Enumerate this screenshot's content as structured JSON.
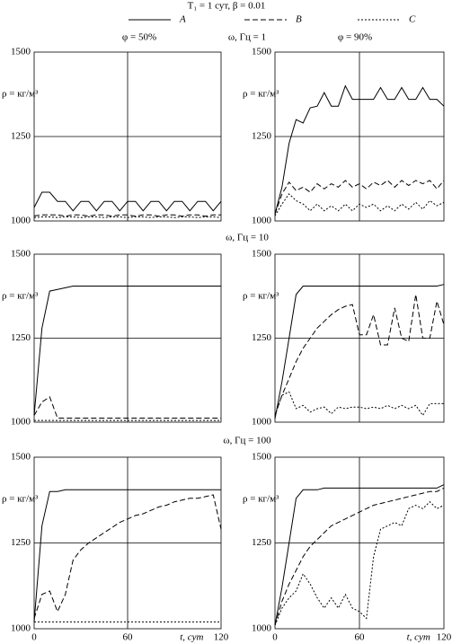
{
  "title": "T₁ = 1 сут,  β = 0.01",
  "column_titles": [
    "φ = 50%",
    "φ = 90%"
  ],
  "row_titles": [
    "ω, Гц = 1",
    "ω, Гц = 10",
    "ω, Гц = 100"
  ],
  "chart_data": [
    {
      "type": "line",
      "ylabel": "ρ = кг/м³",
      "xlim": [
        0,
        120
      ],
      "ylim": [
        1000,
        1500
      ],
      "yticks": [
        1000,
        1250,
        1500
      ],
      "xticks": [
        60
      ],
      "xtick_labels": false,
      "grid": true,
      "x": [
        0,
        5,
        10,
        15,
        20,
        25,
        30,
        35,
        40,
        45,
        50,
        55,
        60,
        65,
        70,
        75,
        80,
        85,
        90,
        95,
        100,
        105,
        110,
        115,
        120
      ],
      "series": [
        {
          "name": "A",
          "color": "#000000",
          "dash": "solid",
          "values": [
            1040,
            1085,
            1085,
            1058,
            1058,
            1030,
            1058,
            1058,
            1030,
            1058,
            1058,
            1030,
            1058,
            1058,
            1030,
            1058,
            1058,
            1030,
            1058,
            1058,
            1030,
            1058,
            1058,
            1030,
            1058
          ]
        },
        {
          "name": "B",
          "color": "#000000",
          "dash": "dashed",
          "values": [
            1015,
            1018,
            1018,
            1018,
            1014,
            1018,
            1018,
            1014,
            1018,
            1018,
            1014,
            1018,
            1018,
            1014,
            1018,
            1018,
            1014,
            1018,
            1018,
            1014,
            1018,
            1018,
            1014,
            1018,
            1018
          ]
        },
        {
          "name": "C",
          "color": "#000000",
          "dash": "dotted",
          "values": [
            1010,
            1012,
            1012,
            1010,
            1012,
            1012,
            1010,
            1012,
            1012,
            1010,
            1012,
            1012,
            1010,
            1012,
            1012,
            1010,
            1012,
            1012,
            1010,
            1012,
            1012,
            1010,
            1012,
            1012,
            1010
          ]
        }
      ]
    },
    {
      "type": "line",
      "ylabel": "ρ = кг/м³",
      "xlim": [
        0,
        120
      ],
      "ylim": [
        1000,
        1500
      ],
      "yticks": [
        1000,
        1250,
        1500
      ],
      "xticks": [
        60
      ],
      "xtick_labels": false,
      "grid": true,
      "x": [
        0,
        5,
        10,
        15,
        20,
        25,
        30,
        35,
        40,
        45,
        50,
        55,
        60,
        65,
        70,
        75,
        80,
        85,
        90,
        95,
        100,
        105,
        110,
        115,
        120
      ],
      "series": [
        {
          "name": "A",
          "color": "#000000",
          "dash": "solid",
          "values": [
            1020,
            1100,
            1230,
            1300,
            1290,
            1335,
            1340,
            1380,
            1340,
            1340,
            1400,
            1360,
            1360,
            1360,
            1360,
            1395,
            1360,
            1360,
            1395,
            1360,
            1360,
            1395,
            1360,
            1360,
            1340
          ]
        },
        {
          "name": "B",
          "color": "#000000",
          "dash": "dashed",
          "values": [
            1020,
            1080,
            1115,
            1090,
            1100,
            1085,
            1110,
            1095,
            1110,
            1100,
            1120,
            1100,
            1110,
            1095,
            1115,
            1105,
            1120,
            1100,
            1120,
            1105,
            1120,
            1110,
            1120,
            1095,
            1120
          ]
        },
        {
          "name": "C",
          "color": "#000000",
          "dash": "dotted",
          "values": [
            1015,
            1050,
            1080,
            1060,
            1050,
            1030,
            1050,
            1030,
            1045,
            1030,
            1050,
            1030,
            1050,
            1040,
            1050,
            1030,
            1045,
            1030,
            1050,
            1035,
            1055,
            1035,
            1060,
            1045,
            1055
          ]
        }
      ]
    },
    {
      "type": "line",
      "ylabel": "ρ = кг/м³",
      "xlim": [
        0,
        120
      ],
      "ylim": [
        1000,
        1500
      ],
      "yticks": [
        1000,
        1250,
        1500
      ],
      "xticks": [
        60
      ],
      "xtick_labels": false,
      "grid": true,
      "x": [
        0,
        5,
        10,
        15,
        20,
        25,
        30,
        35,
        40,
        45,
        50,
        55,
        60,
        65,
        70,
        75,
        80,
        85,
        90,
        95,
        100,
        105,
        110,
        115,
        120
      ],
      "series": [
        {
          "name": "A",
          "color": "#000000",
          "dash": "solid",
          "values": [
            1020,
            1280,
            1390,
            1395,
            1400,
            1405,
            1405,
            1405,
            1405,
            1405,
            1405,
            1405,
            1405,
            1405,
            1405,
            1405,
            1405,
            1405,
            1405,
            1405,
            1405,
            1405,
            1405,
            1405,
            1405
          ]
        },
        {
          "name": "B",
          "color": "#000000",
          "dash": "dashed",
          "values": [
            1020,
            1060,
            1075,
            1012,
            1012,
            1012,
            1012,
            1012,
            1012,
            1012,
            1012,
            1012,
            1012,
            1012,
            1012,
            1012,
            1012,
            1012,
            1012,
            1012,
            1012,
            1012,
            1012,
            1012,
            1012
          ]
        },
        {
          "name": "C",
          "color": "#000000",
          "dash": "dotted",
          "values": [
            1005,
            1005,
            1005,
            1005,
            1005,
            1005,
            1005,
            1005,
            1005,
            1005,
            1005,
            1005,
            1005,
            1005,
            1005,
            1005,
            1005,
            1005,
            1005,
            1005,
            1005,
            1005,
            1005,
            1005,
            1005
          ]
        }
      ]
    },
    {
      "type": "line",
      "ylabel": "ρ = кг/м³",
      "xlim": [
        0,
        120
      ],
      "ylim": [
        1000,
        1500
      ],
      "yticks": [
        1000,
        1250,
        1500
      ],
      "xticks": [
        60
      ],
      "xtick_labels": false,
      "grid": true,
      "x": [
        0,
        5,
        10,
        15,
        20,
        25,
        30,
        35,
        40,
        45,
        50,
        55,
        60,
        65,
        70,
        75,
        80,
        85,
        90,
        95,
        100,
        105,
        110,
        115,
        120
      ],
      "series": [
        {
          "name": "A",
          "color": "#000000",
          "dash": "solid",
          "values": [
            1010,
            1120,
            1250,
            1380,
            1405,
            1405,
            1405,
            1405,
            1405,
            1405,
            1405,
            1405,
            1405,
            1405,
            1405,
            1405,
            1405,
            1405,
            1405,
            1405,
            1405,
            1405,
            1405,
            1405,
            1410
          ]
        },
        {
          "name": "B",
          "color": "#000000",
          "dash": "dashed",
          "values": [
            1020,
            1080,
            1130,
            1180,
            1220,
            1250,
            1280,
            1300,
            1320,
            1335,
            1345,
            1350,
            1260,
            1260,
            1320,
            1230,
            1230,
            1340,
            1250,
            1240,
            1380,
            1250,
            1250,
            1360,
            1290
          ]
        },
        {
          "name": "C",
          "color": "#000000",
          "dash": "dotted",
          "values": [
            1020,
            1080,
            1090,
            1040,
            1050,
            1030,
            1040,
            1045,
            1025,
            1045,
            1040,
            1045,
            1045,
            1040,
            1045,
            1040,
            1050,
            1040,
            1050,
            1040,
            1050,
            1020,
            1055,
            1055,
            1055
          ]
        }
      ]
    },
    {
      "type": "line",
      "ylabel": "ρ = кг/м³",
      "xlabel": "t, сут",
      "xlim": [
        0,
        120
      ],
      "ylim": [
        1000,
        1500
      ],
      "yticks": [
        1000,
        1250,
        1500
      ],
      "xticks": [
        0,
        60,
        120
      ],
      "xtick_labels": true,
      "grid": true,
      "x": [
        0,
        5,
        10,
        15,
        20,
        25,
        30,
        35,
        40,
        45,
        50,
        55,
        60,
        65,
        70,
        75,
        80,
        85,
        90,
        95,
        100,
        105,
        110,
        115,
        120
      ],
      "series": [
        {
          "name": "A",
          "color": "#000000",
          "dash": "solid",
          "values": [
            1020,
            1300,
            1400,
            1400,
            1405,
            1405,
            1405,
            1405,
            1405,
            1405,
            1405,
            1405,
            1405,
            1405,
            1405,
            1405,
            1405,
            1405,
            1405,
            1405,
            1405,
            1405,
            1405,
            1405,
            1405
          ]
        },
        {
          "name": "B",
          "color": "#000000",
          "dash": "dashed",
          "values": [
            1030,
            1100,
            1110,
            1050,
            1100,
            1200,
            1230,
            1250,
            1265,
            1280,
            1295,
            1310,
            1320,
            1330,
            1335,
            1345,
            1355,
            1360,
            1370,
            1375,
            1380,
            1380,
            1385,
            1390,
            1290
          ]
        },
        {
          "name": "C",
          "color": "#000000",
          "dash": "dotted",
          "values": [
            1020,
            1020,
            1020,
            1020,
            1020,
            1020,
            1020,
            1020,
            1020,
            1020,
            1020,
            1020,
            1020,
            1020,
            1020,
            1020,
            1020,
            1020,
            1020,
            1020,
            1020,
            1020,
            1020,
            1020,
            1020
          ]
        }
      ]
    },
    {
      "type": "line",
      "ylabel": "ρ = кг/м³",
      "xlabel": "t, сут",
      "xlim": [
        0,
        120
      ],
      "ylim": [
        1000,
        1500
      ],
      "yticks": [
        1000,
        1250,
        1500
      ],
      "xticks": [
        0,
        60,
        120
      ],
      "xtick_labels": true,
      "grid": true,
      "x": [
        0,
        5,
        10,
        15,
        20,
        25,
        30,
        35,
        40,
        45,
        50,
        55,
        60,
        65,
        70,
        75,
        80,
        85,
        90,
        95,
        100,
        105,
        110,
        115,
        120
      ],
      "series": [
        {
          "name": "A",
          "color": "#000000",
          "dash": "solid",
          "values": [
            1010,
            1120,
            1250,
            1380,
            1405,
            1405,
            1405,
            1410,
            1410,
            1410,
            1410,
            1410,
            1410,
            1410,
            1410,
            1410,
            1410,
            1410,
            1410,
            1410,
            1410,
            1410,
            1410,
            1410,
            1420
          ]
        },
        {
          "name": "B",
          "color": "#000000",
          "dash": "dashed",
          "values": [
            1010,
            1080,
            1130,
            1170,
            1210,
            1240,
            1260,
            1280,
            1300,
            1310,
            1320,
            1330,
            1340,
            1350,
            1360,
            1365,
            1370,
            1375,
            1380,
            1385,
            1390,
            1395,
            1400,
            1400,
            1410
          ]
        },
        {
          "name": "C",
          "color": "#000000",
          "dash": "dotted",
          "values": [
            1010,
            1060,
            1090,
            1110,
            1160,
            1130,
            1090,
            1060,
            1090,
            1060,
            1100,
            1060,
            1050,
            1030,
            1210,
            1290,
            1300,
            1310,
            1300,
            1350,
            1360,
            1350,
            1370,
            1350,
            1360
          ]
        }
      ]
    }
  ]
}
